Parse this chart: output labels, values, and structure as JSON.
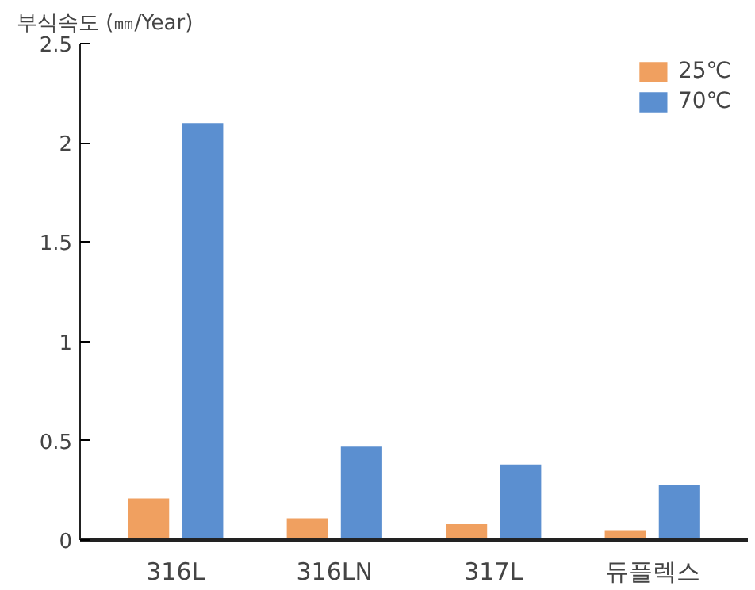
{
  "chart_data": {
    "type": "bar",
    "ylabel": "부식속도 (㎜/Year)",
    "categories": [
      "316L",
      "316LN",
      "317L",
      "듀플렉스"
    ],
    "series": [
      {
        "name": "25℃",
        "color": "#f0a060",
        "values": [
          0.21,
          0.11,
          0.08,
          0.05
        ]
      },
      {
        "name": "70℃",
        "color": "#5b8fd0",
        "values": [
          2.1,
          0.47,
          0.38,
          0.28
        ]
      }
    ],
    "ylim": [
      0,
      2.5
    ],
    "yticks": [
      0,
      0.5,
      1,
      1.5,
      2,
      2.5
    ],
    "grid": false,
    "legend": "top right"
  }
}
